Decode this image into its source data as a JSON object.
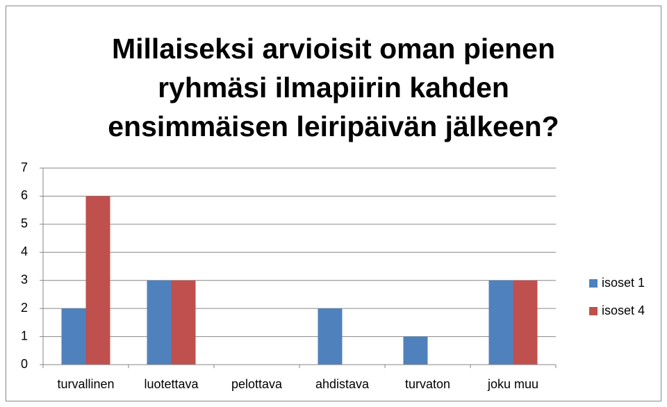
{
  "chart_data": {
    "type": "bar",
    "title": "Millaiseksi arvioisit oman pienen ryhmäsi ilmapiirin kahden ensimmäisen leiripäivän jälkeen?",
    "categories": [
      "turvallinen",
      "luotettava",
      "pelottava",
      "ahdistava",
      "turvaton",
      "joku muu"
    ],
    "series": [
      {
        "name": "isoset 1",
        "color": "#4f81bd",
        "values": [
          2,
          3,
          0,
          2,
          1,
          3
        ]
      },
      {
        "name": "isoset 4",
        "color": "#c0504d",
        "values": [
          6,
          3,
          0,
          0,
          0,
          3
        ]
      }
    ],
    "ylim": [
      0,
      7
    ],
    "yticks": [
      0,
      1,
      2,
      3,
      4,
      5,
      6,
      7
    ],
    "grid": true,
    "legend": "right"
  }
}
